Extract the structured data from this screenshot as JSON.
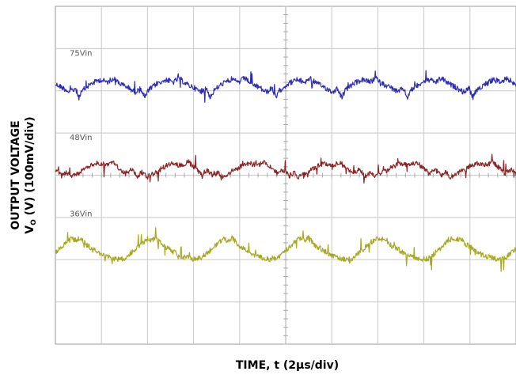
{
  "chart_data": {
    "type": "line",
    "title": "",
    "xlabel": "TIME, t (2µs/div)",
    "ylabel_line1": "OUTPUT VOLTAGE",
    "ylabel_line2": "V",
    "ylabel_sub": "O",
    "ylabel_rest": " (V) (100mV/div)",
    "divisions": {
      "x": 10,
      "y": 8
    },
    "xlim": [
      0,
      20
    ],
    "grid": true,
    "colors": {
      "grid": "#c8c8c8",
      "axis_center": "#a8a8a8",
      "border": "#9a9a9a"
    },
    "series": [
      {
        "name": "75Vin",
        "color": "#2b2bb4",
        "baseline_div": 1.95,
        "period_us": 2.85,
        "phase_us": 0.0,
        "amplitude_mvpp": 70,
        "shape": [
          [
            0.0,
            0.15
          ],
          [
            0.1,
            0.05
          ],
          [
            0.22,
            -0.12
          ],
          [
            0.3,
            0.02
          ],
          [
            0.36,
            -0.3
          ],
          [
            0.42,
            -0.05
          ],
          [
            0.55,
            0.18
          ],
          [
            0.68,
            0.3
          ],
          [
            0.8,
            0.22
          ],
          [
            0.88,
            0.36
          ],
          [
            1.0,
            0.15
          ]
        ]
      },
      {
        "name": "48Vin",
        "color": "#8b2323",
        "baseline_div": 3.9,
        "period_us": 3.3,
        "phase_us": 0.0,
        "amplitude_mvpp": 65,
        "shape": [
          [
            0.0,
            0.05
          ],
          [
            0.08,
            -0.18
          ],
          [
            0.14,
            -0.05
          ],
          [
            0.2,
            -0.22
          ],
          [
            0.3,
            -0.08
          ],
          [
            0.45,
            0.18
          ],
          [
            0.55,
            0.28
          ],
          [
            0.65,
            0.2
          ],
          [
            0.75,
            0.32
          ],
          [
            0.85,
            0.08
          ],
          [
            0.92,
            -0.1
          ],
          [
            1.0,
            0.05
          ]
        ]
      },
      {
        "name": "36Vin",
        "color": "#a8a820",
        "baseline_div": 5.75,
        "period_us": 3.3,
        "phase_us": 0.3,
        "amplitude_mvpp": 70,
        "shape": [
          [
            0.0,
            -0.32
          ],
          [
            0.1,
            -0.1
          ],
          [
            0.22,
            0.18
          ],
          [
            0.3,
            0.35
          ],
          [
            0.36,
            0.3
          ],
          [
            0.42,
            0.38
          ],
          [
            0.5,
            0.15
          ],
          [
            0.62,
            -0.05
          ],
          [
            0.72,
            -0.22
          ],
          [
            0.8,
            -0.28
          ],
          [
            0.9,
            -0.34
          ],
          [
            1.0,
            -0.32
          ]
        ]
      }
    ]
  }
}
